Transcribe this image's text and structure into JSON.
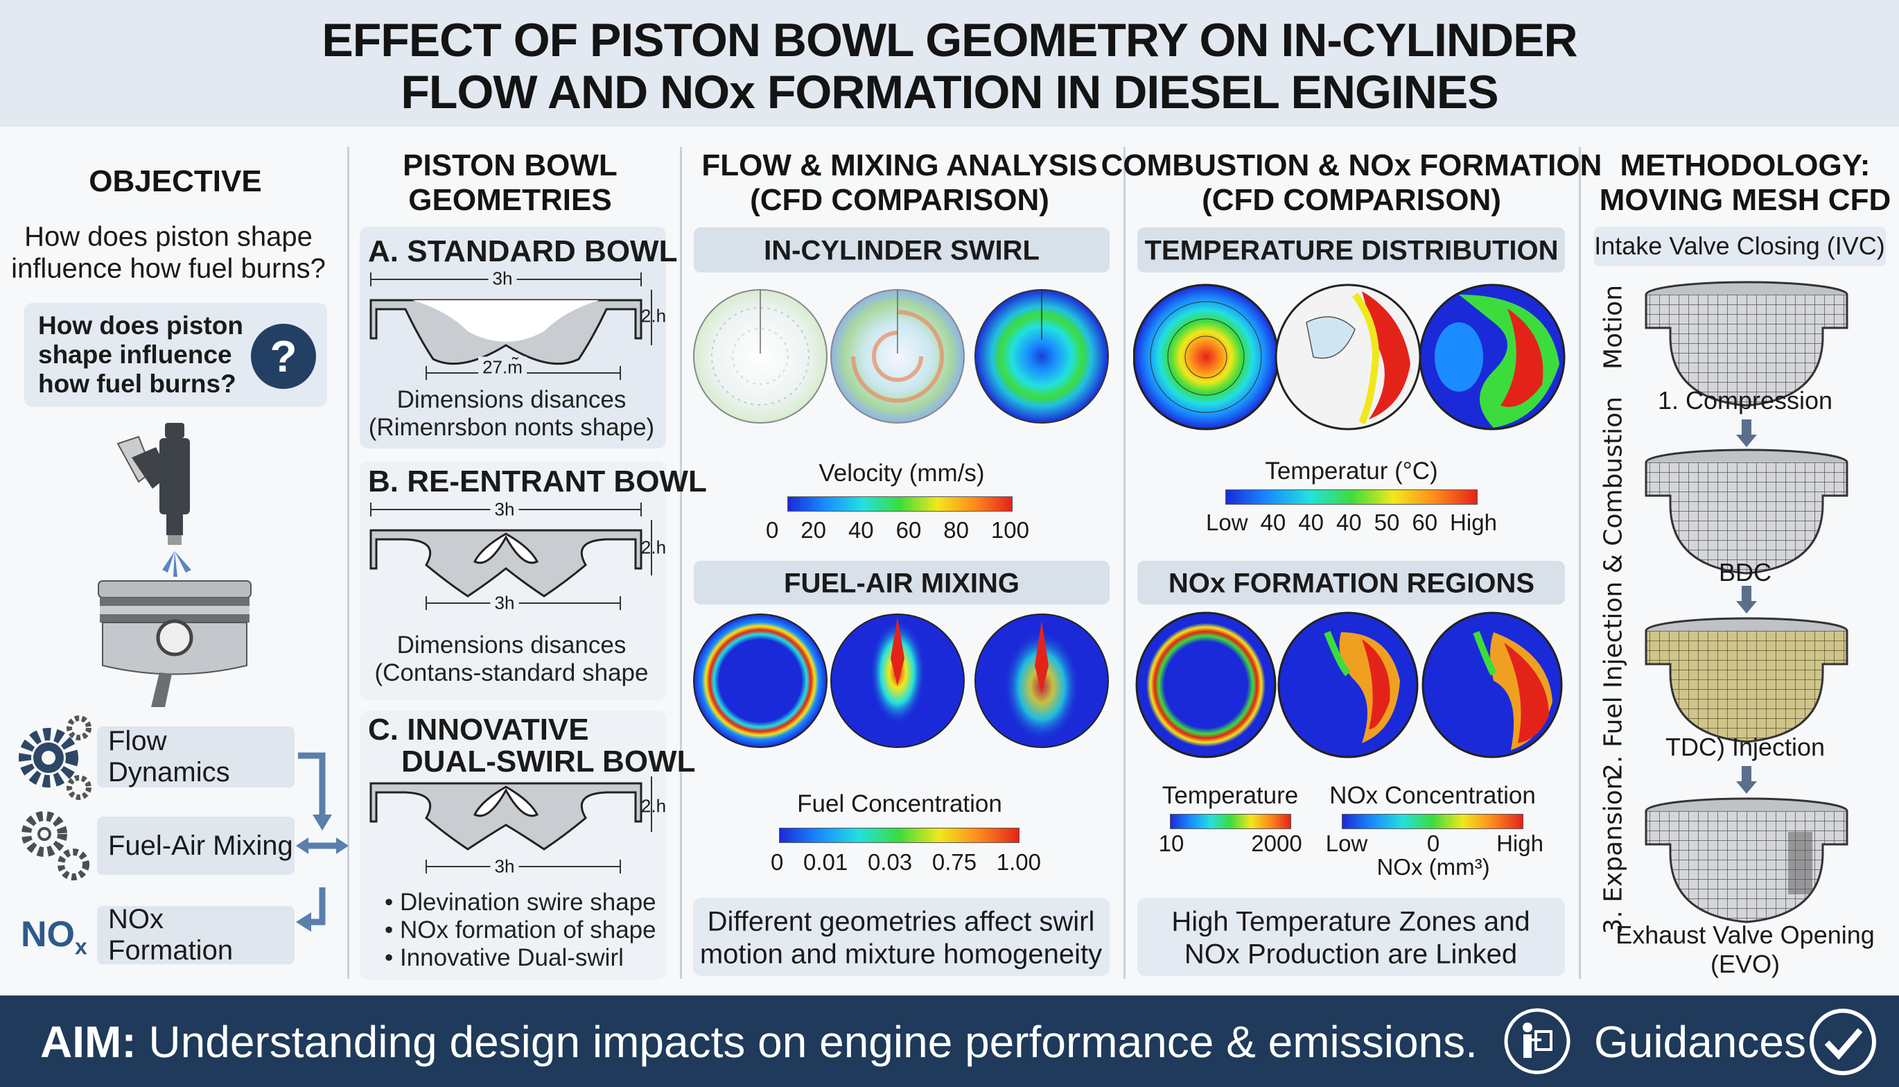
{
  "header": {
    "title_line1": "EFFECT OF PISTON BOWL GEOMETRY ON IN-CYLINDER",
    "title_line2": "FLOW AND NOx FORMATION IN DIESEL ENGINES"
  },
  "objective": {
    "title": "OBJECTIVE",
    "question_line1": "How does piston shape",
    "question_line2": "influence how fuel burns?",
    "box_line1": "How does piston",
    "box_line2": "shape influence",
    "box_line3": "how fuel burns?",
    "box_icon": "question-icon",
    "items": [
      {
        "label": "Flow Dynamics",
        "icon": "gears-icon"
      },
      {
        "label": "Fuel-Air Mixing",
        "icon": "gears-icon"
      },
      {
        "label": "NOx Formation",
        "icon": "nox-icon"
      }
    ],
    "nox_symbol": "NO",
    "nox_sub": "x"
  },
  "geometries": {
    "title_line1": "PISTON BOWL",
    "title_line2": "GEOMETRIES",
    "a": {
      "title": "A. STANDARD BOWL",
      "dim_top": "3h",
      "dim_side": "2.h",
      "dim_bottom": "27.m̃",
      "text_line1": "Dimensions disances",
      "text_line2": "(Rimenrsbon nonts shape)"
    },
    "b": {
      "title": "B. RE-ENTRANT BOWL",
      "dim_top": "3h",
      "dim_side": "2.h",
      "dim_bottom": "3h",
      "text_line1": "Dimensions disances",
      "text_line2": "(Contans-standard shape"
    },
    "c": {
      "title_line1": "C. INNOVATIVE",
      "title_line2": "DUAL-SWIRL BOWL",
      "dim_side": "2.h",
      "dim_bottom": "3h",
      "bullets": [
        "Dlevination swire shape",
        "NOx formation of shape",
        "Innovative Dual-swirl"
      ]
    }
  },
  "flow": {
    "title_line1": "FLOW & MIXING ANALYSIS",
    "title_line2": "(CFD COMPARISON)",
    "swirl_title": "IN-CYLINDER SWIRL",
    "velocity_label": "Velocity (mm/s)",
    "velocity_ticks": [
      "0",
      "20",
      "40",
      "60",
      "80",
      "100"
    ],
    "mixing_title": "FUEL-AIR MIXING",
    "fuel_label": "Fuel Concentration",
    "fuel_ticks": [
      "0",
      "0.01",
      "0.03",
      "0.75",
      "1.00"
    ],
    "summary_line1": "Different geometries affect swirl",
    "summary_line2": "motion and mixture homogeneity"
  },
  "combustion": {
    "title_line1": "COMBUSTION & NOx FORMATION",
    "title_line2": "(CFD COMPARISON)",
    "temp_title": "TEMPERATURE DISTRIBUTION",
    "temp_label": "Temperatur (°C)",
    "temp_ticks": [
      "Low",
      "40",
      "40",
      "40",
      "50",
      "60",
      "High"
    ],
    "nox_title": "NOx FORMATION REGIONS",
    "legend_temp_label": "Temperature",
    "legend_temp_min": "10",
    "legend_temp_max": "2000",
    "legend_nox_label": "NOx Concentration",
    "legend_nox_low": "Low",
    "legend_nox_mid": "0",
    "legend_nox_high": "High",
    "legend_nox_unit": "NOx (mm³)",
    "summary_line1": "High Temperature Zones and",
    "summary_line2": "NOx Production are Linked"
  },
  "methodology": {
    "title_line1": "METHODOLOGY:",
    "title_line2": "MOVING MESH CFD",
    "ivc": "Intake Valve Closing (IVC)",
    "step1": "1. Compression",
    "bdc": "BDC",
    "tdc": "TDC) Injection",
    "evo_line1": "Exhaust Valve Opening",
    "evo_line2": "(EVO)",
    "side_motion": "Motion",
    "side_injection": "2. Fuel Injection & Combustion",
    "side_expansion": "3. Expansion"
  },
  "footer": {
    "aim_label": "AIM:",
    "aim_text": "Understanding design impacts on engine performance & emissions.",
    "guidances": "Guidances",
    "guidance_icon": "presenter-icon",
    "check_icon": "check-circle-icon"
  },
  "colors": {
    "navy": "#1f3a5a",
    "panel": "#e4eaf1",
    "accent": "#2d5a8a",
    "mesh_yellow": "#cfc58a"
  }
}
